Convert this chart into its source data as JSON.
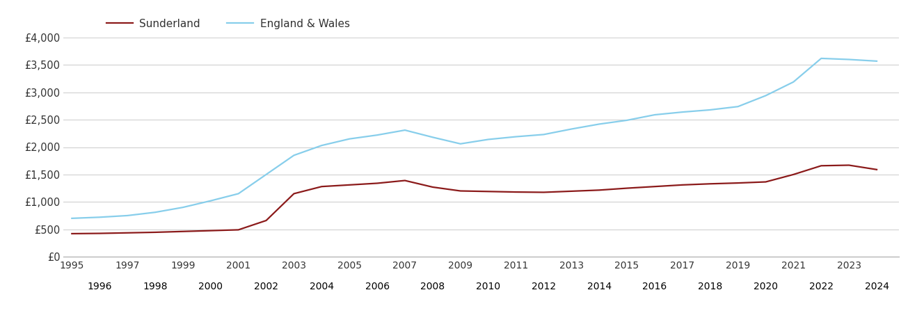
{
  "years": [
    1995,
    1996,
    1997,
    1998,
    1999,
    2000,
    2001,
    2002,
    2003,
    2004,
    2005,
    2006,
    2007,
    2008,
    2009,
    2010,
    2011,
    2012,
    2013,
    2014,
    2015,
    2016,
    2017,
    2018,
    2019,
    2020,
    2021,
    2022,
    2023,
    2024
  ],
  "sunderland": [
    420,
    425,
    435,
    445,
    460,
    475,
    490,
    660,
    1150,
    1280,
    1310,
    1340,
    1390,
    1270,
    1200,
    1190,
    1180,
    1175,
    1195,
    1215,
    1250,
    1280,
    1310,
    1330,
    1345,
    1365,
    1500,
    1660,
    1670,
    1590
  ],
  "england_wales": [
    700,
    720,
    750,
    810,
    900,
    1020,
    1150,
    1500,
    1850,
    2030,
    2150,
    2220,
    2310,
    2180,
    2060,
    2140,
    2190,
    2230,
    2330,
    2420,
    2490,
    2590,
    2640,
    2680,
    2740,
    2940,
    3190,
    3620,
    3600,
    3570
  ],
  "sunderland_color": "#8B1A1A",
  "england_wales_color": "#87CEEB",
  "sunderland_label": "Sunderland",
  "england_wales_label": "England & Wales",
  "ylim": [
    0,
    4000
  ],
  "yticks": [
    0,
    500,
    1000,
    1500,
    2000,
    2500,
    3000,
    3500,
    4000
  ],
  "ytick_labels": [
    "£0",
    "£500",
    "£1,000",
    "£1,500",
    "£2,000",
    "£2,500",
    "£3,000",
    "£3,500",
    "£4,000"
  ],
  "background_color": "#ffffff",
  "grid_color": "#d0d0d0",
  "line_width": 1.6,
  "xlim_left": 1994.7,
  "xlim_right": 2024.8
}
